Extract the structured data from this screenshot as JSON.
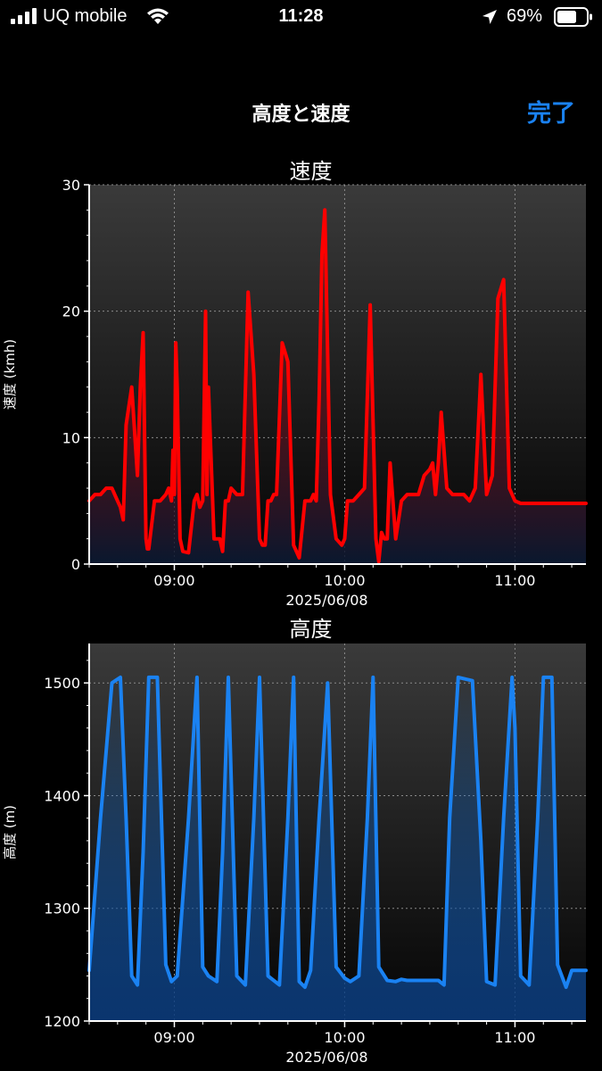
{
  "status_bar": {
    "carrier": "UQ mobile",
    "time": "11:28",
    "battery": "69%",
    "icons": [
      "signal-icon",
      "wifi-icon",
      "location-arrow-icon",
      "battery-icon"
    ]
  },
  "nav": {
    "title": "高度と速度",
    "done_label": "完了"
  },
  "colors": {
    "speed_line": "#ff0000",
    "altitude_line": "#1a82f2",
    "done_accent": "#1a82f2"
  },
  "chart_data": [
    {
      "type": "line",
      "title": "速度",
      "xlabel": "2025/06/08",
      "ylabel": "速度 (kmh)",
      "ylim": [
        0,
        30
      ],
      "yticks": [
        0,
        10,
        20,
        30
      ],
      "xlim": [
        "08:30",
        "11:25"
      ],
      "xticks": [
        "09:00",
        "10:00",
        "11:00"
      ],
      "grid": true,
      "fill": "gradient",
      "series": [
        {
          "x": [
            "08:30",
            "08:32",
            "08:34",
            "08:36",
            "08:38",
            "08:40",
            "08:41",
            "08:42",
            "08:43",
            "08:45",
            "08:47",
            "08:48",
            "08:49",
            "08:50",
            "08:50:30",
            "08:51",
            "08:53",
            "08:55",
            "08:57",
            "09:00",
            "08:58",
            "08:59",
            "08:59:30",
            "09:00:30",
            "09:01",
            "09:02",
            "09:03",
            "09:05",
            "09:07",
            "09:08",
            "09:09",
            "09:10",
            "09:11",
            "09:11:30",
            "09:12",
            "09:14",
            "09:16",
            "09:17",
            "09:18",
            "09:19",
            "09:20",
            "09:22",
            "09:24",
            "09:26",
            "09:28",
            "09:30",
            "09:31",
            "09:32",
            "09:33",
            "09:34",
            "09:35",
            "09:36",
            "09:38",
            "09:40",
            "09:42",
            "09:44",
            "09:46",
            "09:48",
            "09:49",
            "09:50",
            "09:51",
            "09:52",
            "09:53",
            "09:55",
            "09:57",
            "09:59",
            "10:00",
            "10:01",
            "10:03",
            "10:05",
            "10:07",
            "10:09",
            "10:11",
            "10:12",
            "10:13",
            "10:14",
            "10:15",
            "10:16",
            "10:18",
            "10:20",
            "10:22",
            "10:24",
            "10:26",
            "10:28",
            "10:30",
            "10:31",
            "10:32",
            "10:33",
            "10:34",
            "10:36",
            "10:38",
            "10:40",
            "10:42",
            "10:44",
            "10:46",
            "10:48",
            "10:50",
            "10:52",
            "10:54",
            "10:56",
            "10:58",
            "11:00",
            "11:02",
            "11:04",
            "11:06",
            "11:08",
            "11:10",
            "11:12",
            "11:14",
            "11:16",
            "11:18",
            "11:20",
            "11:21",
            "11:22",
            "11:23",
            "11:24",
            "11:25"
          ],
          "y": [
            5,
            5.5,
            5.5,
            6,
            6,
            5,
            4.5,
            3.5,
            11,
            14,
            7,
            14,
            18.3,
            2,
            1.2,
            1.2,
            5,
            5,
            5.5,
            5.5,
            6,
            5,
            9,
            17.5,
            14,
            2,
            1,
            0.9,
            5,
            5.5,
            4.5,
            5,
            20,
            5.5,
            14,
            2,
            2,
            1,
            5,
            5,
            6,
            5.5,
            5.5,
            21.5,
            15,
            2,
            1.5,
            1.5,
            5,
            5,
            5.5,
            5.5,
            17.5,
            16,
            1.5,
            0.5,
            5,
            5,
            5.5,
            5,
            13,
            24.5,
            28,
            5.5,
            2,
            1.5,
            2,
            5,
            5,
            5.5,
            6,
            20.5,
            2,
            0.2,
            2.5,
            2,
            2,
            8,
            2,
            5,
            5.5,
            5.5,
            5.5,
            7,
            7.5,
            8,
            5.5,
            8,
            12,
            6,
            5.5,
            5.5,
            5.5,
            5,
            6,
            15,
            5.5,
            7,
            21,
            22.5,
            6,
            5,
            4.8,
            4.8,
            4.8,
            4.8,
            4.8,
            4.8,
            4.8,
            4.8,
            4.8,
            4.8,
            4.8,
            4.8,
            4.8,
            4.8,
            4.8
          ],
          "note_order": "points in chronological order"
        }
      ]
    },
    {
      "type": "line",
      "title": "高度",
      "xlabel": "2025/06/08",
      "ylabel": "高度 (m)",
      "ylim": [
        1200,
        1535
      ],
      "yticks": [
        1200,
        1300,
        1400,
        1500
      ],
      "xlim": [
        "08:30",
        "11:25"
      ],
      "xticks": [
        "09:00",
        "10:00",
        "11:00"
      ],
      "grid": true,
      "fill": "gradient",
      "series": [
        {
          "x": [
            "08:30",
            "08:34",
            "08:38",
            "08:41",
            "08:43",
            "08:45",
            "08:47",
            "08:49",
            "08:51",
            "08:54",
            "08:57",
            "08:59",
            "09:01",
            "09:05",
            "09:08",
            "09:10",
            "09:12",
            "09:15",
            "09:17",
            "09:19",
            "09:22",
            "09:25",
            "09:28",
            "09:30",
            "09:33",
            "09:37",
            "09:40",
            "09:42",
            "09:44",
            "09:46",
            "09:48",
            "09:51",
            "09:54",
            "09:57",
            "10:00",
            "10:02",
            "10:05",
            "10:08",
            "10:10",
            "10:12",
            "10:15",
            "10:18",
            "10:20",
            "10:22",
            "10:25",
            "10:28",
            "10:30",
            "10:33",
            "10:35",
            "10:37",
            "10:40",
            "10:45",
            "10:48",
            "10:50",
            "10:53",
            "10:56",
            "10:59",
            "11:00",
            "11:02",
            "11:05",
            "11:08",
            "11:10",
            "11:13",
            "11:15",
            "11:18",
            "11:20",
            "11:22",
            "11:24",
            "11:25"
          ],
          "y": [
            1245,
            1380,
            1500,
            1505,
            1380,
            1240,
            1232,
            1350,
            1505,
            1505,
            1250,
            1235,
            1240,
            1380,
            1505,
            1248,
            1240,
            1235,
            1350,
            1505,
            1240,
            1232,
            1380,
            1505,
            1240,
            1232,
            1380,
            1505,
            1235,
            1230,
            1245,
            1380,
            1500,
            1248,
            1238,
            1235,
            1240,
            1380,
            1505,
            1248,
            1236,
            1235,
            1237,
            1236,
            1236,
            1236,
            1236,
            1236,
            1232,
            1380,
            1505,
            1502,
            1360,
            1235,
            1232,
            1380,
            1505,
            1460,
            1240,
            1232,
            1380,
            1505,
            1505,
            1250,
            1230,
            1245,
            1245,
            1245,
            1245
          ]
        }
      ]
    }
  ]
}
